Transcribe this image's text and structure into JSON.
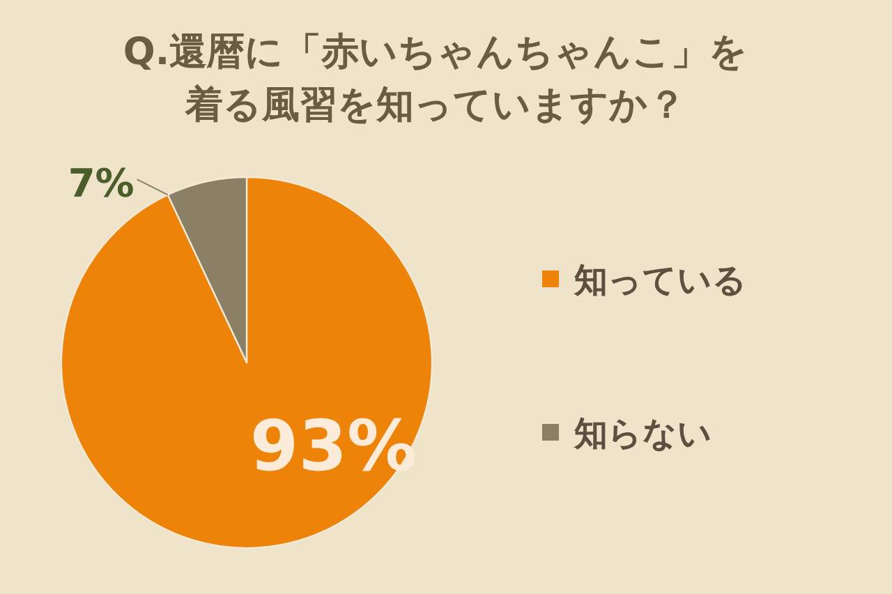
{
  "chart_data": {
    "type": "pie",
    "title": "Q.還暦に「赤いちゃんちゃんこ」を着る風習を知っていますか？",
    "categories": [
      "知っている",
      "知らない"
    ],
    "values": [
      93,
      7
    ],
    "colors": [
      "#ed8308",
      "#8b7f66"
    ],
    "value_labels": [
      "93%",
      "7%"
    ],
    "legend": "right"
  }
}
